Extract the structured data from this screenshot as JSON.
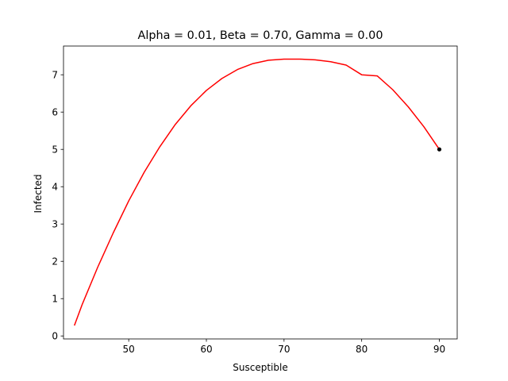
{
  "chart_data": {
    "type": "line",
    "title": "Alpha = 0.01, Beta = 0.70, Gamma = 0.00",
    "xlabel": "Susceptible",
    "ylabel": "Infected",
    "xlim": [
      41.6,
      92.3
    ],
    "ylim": [
      -0.08,
      7.77
    ],
    "x_ticks": [
      50,
      60,
      70,
      80,
      90
    ],
    "y_ticks": [
      0,
      1,
      2,
      3,
      4,
      5,
      6,
      7
    ],
    "grid": false,
    "series": [
      {
        "color": "#ff0000",
        "x": [
          90,
          88,
          86,
          84,
          82,
          80,
          78,
          76,
          74,
          72,
          70,
          68,
          66,
          64,
          62,
          60,
          58,
          56,
          54,
          52,
          50,
          48,
          46,
          44,
          43
        ],
        "y": [
          5.0,
          5.61,
          6.14,
          6.6,
          6.97,
          7.0,
          7.26,
          7.35,
          7.4,
          7.42,
          7.42,
          7.39,
          7.3,
          7.14,
          6.9,
          6.58,
          6.17,
          5.67,
          5.07,
          4.39,
          3.62,
          2.76,
          1.84,
          0.84,
          0.28
        ]
      }
    ],
    "marker": {
      "x": 90,
      "y": 5.0,
      "color": "#000000"
    }
  }
}
